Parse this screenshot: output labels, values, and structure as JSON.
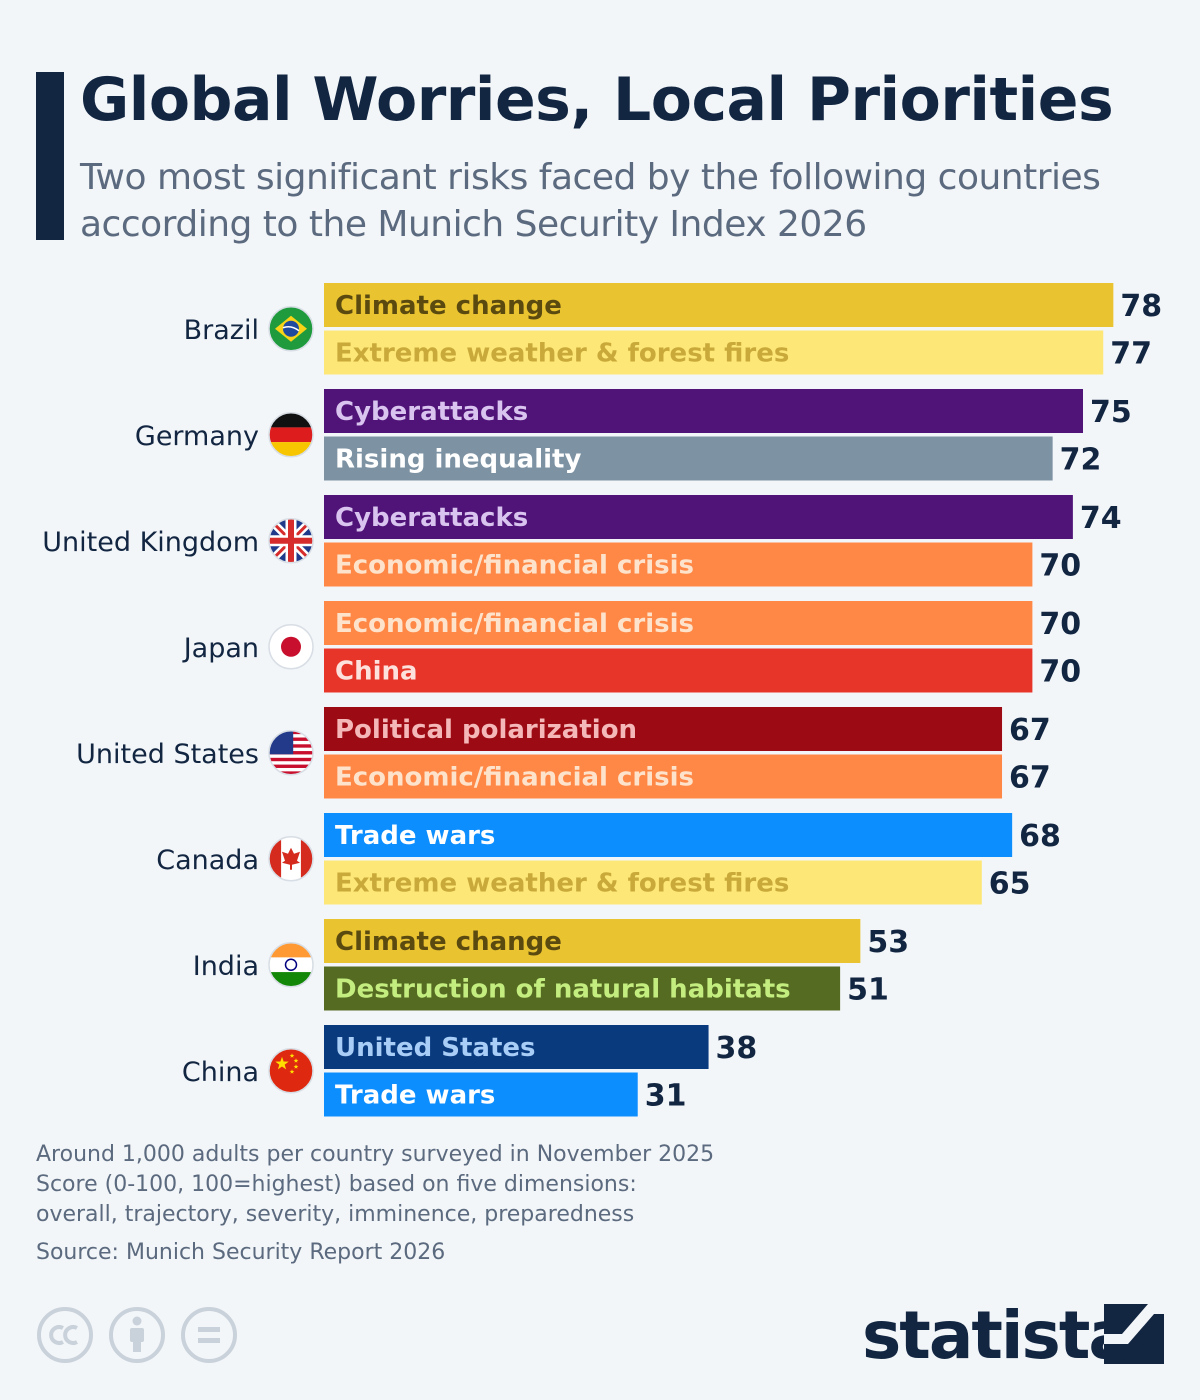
{
  "header": {
    "title": "Global Worries, Local Priorities",
    "subtitle": "Two most significant risks faced by the following countries according to the Munich Security Index 2026"
  },
  "chart_data": {
    "type": "bar",
    "orientation": "horizontal",
    "title": "Global Worries, Local Priorities",
    "subtitle": "Two most significant risks faced by the following countries according to the Munich Security Index 2026",
    "xlim": [
      0,
      100
    ],
    "groups": [
      {
        "country": "Brazil",
        "flag": "brazil-flag",
        "risks": [
          {
            "label": "Climate change",
            "value": 78,
            "color": "#e9c330",
            "text_color": "#5b4a10"
          },
          {
            "label": "Extreme weather & forest fires",
            "value": 77,
            "color": "#fde776",
            "text_color": "#c9a93a"
          }
        ]
      },
      {
        "country": "Germany",
        "flag": "germany-flag",
        "risks": [
          {
            "label": "Cyberattacks",
            "value": 75,
            "color": "#501478",
            "text_color": "#d9c4ef"
          },
          {
            "label": "Rising inequality",
            "value": 72,
            "color": "#7d93a4",
            "text_color": "#ffffff"
          }
        ]
      },
      {
        "country": "United Kingdom",
        "flag": "uk-flag",
        "risks": [
          {
            "label": "Cyberattacks",
            "value": 74,
            "color": "#501478",
            "text_color": "#d9c4ef"
          },
          {
            "label": "Economic/financial crisis",
            "value": 70,
            "color": "#ff8847",
            "text_color": "#fde3cc"
          }
        ]
      },
      {
        "country": "Japan",
        "flag": "japan-flag",
        "risks": [
          {
            "label": "Economic/financial crisis",
            "value": 70,
            "color": "#ff8847",
            "text_color": "#fde3cc"
          },
          {
            "label": "China",
            "value": 70,
            "color": "#e8352a",
            "text_color": "#fde1dc"
          }
        ]
      },
      {
        "country": "United States",
        "flag": "us-flag",
        "risks": [
          {
            "label": "Political polarization",
            "value": 67,
            "color": "#9c0b14",
            "text_color": "#f5b8b8"
          },
          {
            "label": "Economic/financial crisis",
            "value": 67,
            "color": "#ff8847",
            "text_color": "#fde3cc"
          }
        ]
      },
      {
        "country": "Canada",
        "flag": "canada-flag",
        "risks": [
          {
            "label": "Trade wars",
            "value": 68,
            "color": "#0d8eff",
            "text_color": "#ffffff"
          },
          {
            "label": "Extreme weather & forest fires",
            "value": 65,
            "color": "#fde776",
            "text_color": "#c9a93a"
          }
        ]
      },
      {
        "country": "India",
        "flag": "india-flag",
        "risks": [
          {
            "label": "Climate change",
            "value": 53,
            "color": "#e9c330",
            "text_color": "#5b4a10"
          },
          {
            "label": "Destruction of natural habitats",
            "value": 51,
            "color": "#556b22",
            "text_color": "#c4ed7f"
          }
        ]
      },
      {
        "country": "China",
        "flag": "china-flag",
        "risks": [
          {
            "label": "United States",
            "value": 38,
            "color": "#0a3a7e",
            "text_color": "#a8cdf6"
          },
          {
            "label": "Trade wars",
            "value": 31,
            "color": "#0d8eff",
            "text_color": "#ffffff"
          }
        ]
      }
    ]
  },
  "footer": {
    "notes": [
      "Around 1,000 adults per country surveyed in November 2025",
      "Score (0-100, 100=highest) based on five dimensions:",
      "overall, trajectory, severity, imminence, preparedness"
    ],
    "source": "Source: Munich Security Report 2026",
    "license_icons": [
      "creative-commons-icon",
      "attribution-icon",
      "no-derivatives-icon"
    ],
    "brand": "statista"
  }
}
